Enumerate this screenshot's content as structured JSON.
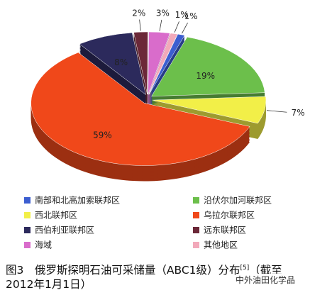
{
  "chart_data": {
    "type": "pie",
    "categories": [
      "远东联邦区",
      "海域",
      "其他地区",
      "南部和北高加索联邦区",
      "沿伏尔加河联邦区",
      "西北联邦区",
      "乌拉尔联邦区",
      "西伯利亚联邦区"
    ],
    "values": [
      2,
      3,
      1,
      1,
      19,
      7,
      59,
      8
    ],
    "value_labels": [
      "2%",
      "3%",
      "1%",
      "1%",
      "19%",
      "7%",
      "59%",
      "8%"
    ],
    "colors": [
      "#6b2838",
      "#d96ccb",
      "#f2a9ba",
      "#3c5ed0",
      "#6cbf4b",
      "#f2ef48",
      "#f0481a",
      "#2c2a5c"
    ],
    "caption": {
      "figure": "图3",
      "text": "俄罗斯探明石油可采储量（ABC1级）分布",
      "ref": "[5]",
      "date": "（截至2012年1月1日）"
    },
    "watermark": "中外油田化学品"
  }
}
